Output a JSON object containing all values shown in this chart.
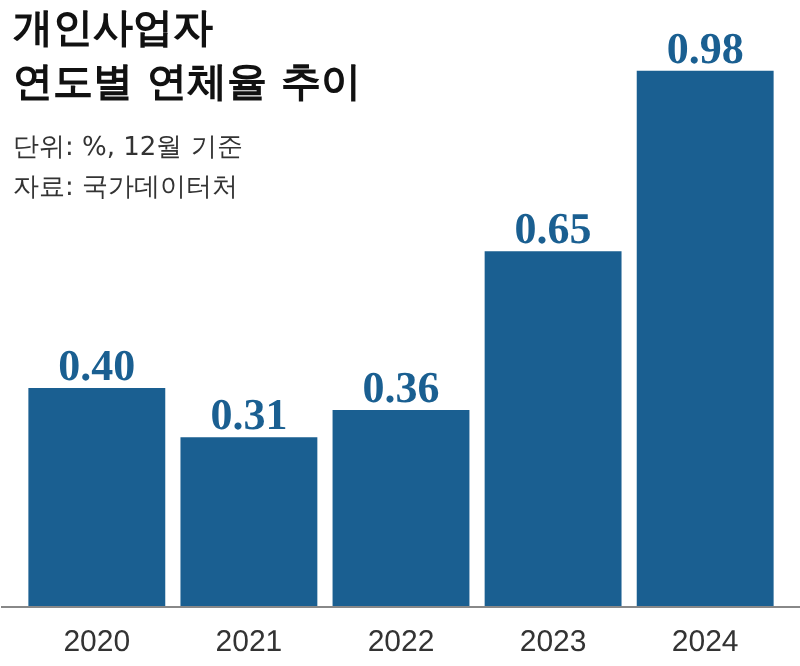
{
  "chart_data": {
    "type": "bar",
    "title": "개인사업자\n연도별 연체율 추이",
    "subtitle": "단위: %, 12월 기준",
    "annotations": [
      "자료: 국가데이터처"
    ],
    "categories": [
      "2020",
      "2021",
      "2022",
      "2023",
      "2024"
    ],
    "values": [
      0.4,
      0.31,
      0.36,
      0.65,
      0.98
    ],
    "value_labels": [
      "0.40",
      "0.31",
      "0.36",
      "0.65",
      "0.98"
    ],
    "color": "#1a5f91",
    "grid": false
  }
}
